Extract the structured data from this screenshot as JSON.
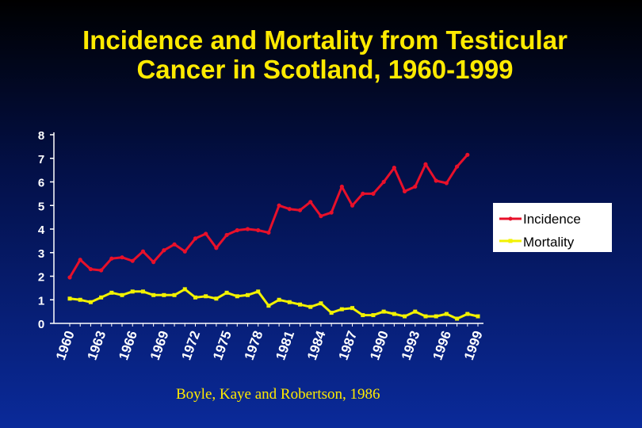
{
  "slide": {
    "title_line1": "Incidence and Mortality from Testicular",
    "title_line2": "Cancer in Scotland, 1960-1999",
    "citation": "Boyle, Kaye and Robertson, 1986"
  },
  "colors": {
    "incidence": "#e8102a",
    "mortality": "#f2f200",
    "title": "#ffea00",
    "axis": "#ffffff"
  },
  "chart_data": {
    "type": "line",
    "title": "Incidence and Mortality from Testicular Cancer in Scotland, 1960-1999",
    "xlabel": "",
    "ylabel": "",
    "ylim": [
      0,
      8
    ],
    "yticks": [
      0,
      1,
      2,
      3,
      4,
      5,
      6,
      7,
      8
    ],
    "grid": false,
    "legend": "right",
    "x": [
      1960,
      1961,
      1962,
      1963,
      1964,
      1965,
      1966,
      1967,
      1968,
      1969,
      1970,
      1971,
      1972,
      1973,
      1974,
      1975,
      1976,
      1977,
      1978,
      1979,
      1980,
      1981,
      1982,
      1983,
      1984,
      1985,
      1986,
      1987,
      1988,
      1989,
      1990,
      1991,
      1992,
      1993,
      1994,
      1995,
      1996,
      1997,
      1998,
      1999
    ],
    "xtick_labels": [
      "1960",
      "1963",
      "1966",
      "1969",
      "1972",
      "1975",
      "1978",
      "1981",
      "1984",
      "1987",
      "1990",
      "1993",
      "1996",
      "1999"
    ],
    "series": [
      {
        "name": "Incidence",
        "values": [
          1.95,
          2.7,
          2.3,
          2.25,
          2.75,
          2.8,
          2.65,
          3.05,
          2.6,
          3.1,
          3.35,
          3.05,
          3.6,
          3.8,
          3.2,
          3.75,
          3.95,
          4.0,
          3.95,
          3.85,
          5.0,
          4.85,
          4.8,
          5.15,
          4.55,
          4.7,
          5.8,
          5.0,
          5.5,
          5.5,
          6.0,
          6.6,
          5.6,
          5.8,
          6.75,
          6.05,
          5.95,
          6.65,
          7.15,
          null
        ]
      },
      {
        "name": "Mortality",
        "values": [
          1.05,
          1.0,
          0.9,
          1.1,
          1.3,
          1.2,
          1.35,
          1.35,
          1.2,
          1.2,
          1.2,
          1.45,
          1.1,
          1.15,
          1.05,
          1.3,
          1.15,
          1.2,
          1.35,
          0.75,
          1.0,
          0.9,
          0.8,
          0.7,
          0.85,
          0.45,
          0.6,
          0.65,
          0.35,
          0.35,
          0.5,
          0.4,
          0.3,
          0.5,
          0.3,
          0.3,
          0.4,
          0.2,
          0.4,
          0.3
        ]
      }
    ]
  }
}
